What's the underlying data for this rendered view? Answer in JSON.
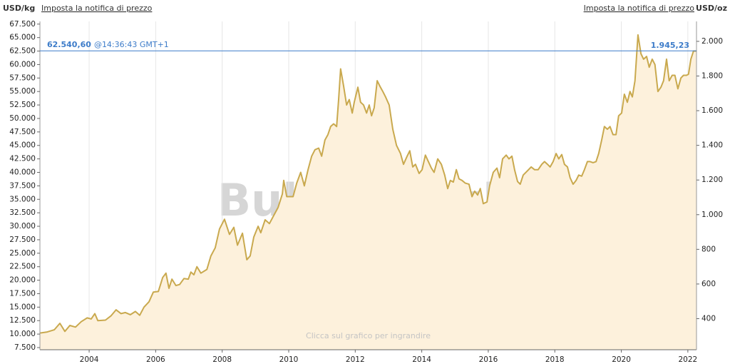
{
  "chart_data": {
    "type": "area",
    "unit_left": "USD/kg",
    "unit_right": "USD/oz",
    "alert_left": "Imposta la notifica di prezzo",
    "alert_right": "Imposta la notifica di prezzo",
    "watermark": "BullionVault",
    "hint": "Clicca sul grafico per ingrandire",
    "current_price": {
      "value": 62540.6,
      "label": "62.540,60"
    },
    "current_time": "@14:36:43 GMT+1",
    "current_price_oz": {
      "value": 1945.23,
      "label": "1.945,23"
    },
    "color": "#c9a94e",
    "fill_color": "#fdf1dc",
    "current_line_color": "#3d7cc9",
    "grid": true,
    "xlim": [
      2002.52,
      2022.26
    ],
    "xticks": [
      2004,
      2006,
      2008,
      2010,
      2012,
      2014,
      2016,
      2018,
      2020,
      2022
    ],
    "ylim": [
      7100,
      68000
    ],
    "yticks": [
      {
        "value": 7500,
        "label": "7.500"
      },
      {
        "value": 10000,
        "label": "10.000"
      },
      {
        "value": 12500,
        "label": "12.500"
      },
      {
        "value": 15000,
        "label": "15.000"
      },
      {
        "value": 17500,
        "label": "17.500"
      },
      {
        "value": 20000,
        "label": "20.000"
      },
      {
        "value": 22500,
        "label": "22.500"
      },
      {
        "value": 25000,
        "label": "25.000"
      },
      {
        "value": 27500,
        "label": "27.500"
      },
      {
        "value": 30000,
        "label": "30.000"
      },
      {
        "value": 32500,
        "label": "32.500"
      },
      {
        "value": 35000,
        "label": "35.000"
      },
      {
        "value": 37500,
        "label": "37.500"
      },
      {
        "value": 40000,
        "label": "40.000"
      },
      {
        "value": 42500,
        "label": "42.500"
      },
      {
        "value": 45000,
        "label": "45.000"
      },
      {
        "value": 47500,
        "label": "47.500"
      },
      {
        "value": 50000,
        "label": "50.000"
      },
      {
        "value": 52500,
        "label": "52.500"
      },
      {
        "value": 55000,
        "label": "55.000"
      },
      {
        "value": 57500,
        "label": "57.500"
      },
      {
        "value": 60000,
        "label": "60.000"
      },
      {
        "value": 62500,
        "label": "62.500"
      },
      {
        "value": 65000,
        "label": "65.000"
      },
      {
        "value": 67500,
        "label": "67.500"
      }
    ],
    "y2lim": [
      220.8,
      2115
    ],
    "y2ticks": [
      400,
      600,
      800,
      {
        "value": 1000,
        "label": "1.000"
      },
      {
        "value": 1200,
        "label": "1.200"
      },
      {
        "value": 1400,
        "label": "1.400"
      },
      {
        "value": 1600,
        "label": "1.600"
      },
      {
        "value": 1800,
        "label": "1.800"
      },
      {
        "value": 2000,
        "label": "2.000"
      }
    ],
    "x": [
      2002.52,
      2002.74,
      2002.95,
      2003.12,
      2003.27,
      2003.42,
      2003.59,
      2003.76,
      2003.94,
      2004.06,
      2004.17,
      2004.26,
      2004.49,
      2004.66,
      2004.81,
      2004.96,
      2005.09,
      2005.24,
      2005.39,
      2005.52,
      2005.65,
      2005.8,
      2005.93,
      2006.08,
      2006.21,
      2006.31,
      2006.4,
      2006.49,
      2006.61,
      2006.72,
      2006.85,
      2006.98,
      2007.06,
      2007.15,
      2007.24,
      2007.36,
      2007.54,
      2007.66,
      2007.79,
      2007.92,
      2008.07,
      2008.22,
      2008.35,
      2008.46,
      2008.61,
      2008.74,
      2008.84,
      2008.95,
      2009.08,
      2009.16,
      2009.29,
      2009.42,
      2009.55,
      2009.68,
      2009.81,
      2009.85,
      2009.94,
      2010.04,
      2010.13,
      2010.24,
      2010.36,
      2010.47,
      2010.58,
      2010.69,
      2010.79,
      2010.9,
      2010.99,
      2011.09,
      2011.18,
      2011.26,
      2011.35,
      2011.44,
      2011.5,
      2011.56,
      2011.65,
      2011.74,
      2011.82,
      2011.91,
      2011.97,
      2012.08,
      2012.16,
      2012.25,
      2012.34,
      2012.42,
      2012.49,
      2012.57,
      2012.66,
      2012.74,
      2012.83,
      2012.91,
      2013.02,
      2013.13,
      2013.24,
      2013.36,
      2013.45,
      2013.56,
      2013.64,
      2013.73,
      2013.81,
      2013.92,
      2014.01,
      2014.11,
      2014.2,
      2014.29,
      2014.37,
      2014.48,
      2014.59,
      2014.69,
      2014.78,
      2014.86,
      2014.95,
      2015.04,
      2015.12,
      2015.21,
      2015.31,
      2015.42,
      2015.51,
      2015.59,
      2015.68,
      2015.76,
      2015.85,
      2015.96,
      2016.04,
      2016.15,
      2016.26,
      2016.34,
      2016.43,
      2016.54,
      2016.62,
      2016.71,
      2016.79,
      2016.88,
      2016.96,
      2017.05,
      2017.18,
      2017.29,
      2017.39,
      2017.5,
      2017.61,
      2017.69,
      2017.78,
      2017.86,
      2017.95,
      2018.04,
      2018.12,
      2018.21,
      2018.29,
      2018.38,
      2018.46,
      2018.55,
      2018.64,
      2018.72,
      2018.81,
      2018.89,
      2018.98,
      2019.06,
      2019.15,
      2019.24,
      2019.32,
      2019.41,
      2019.49,
      2019.58,
      2019.66,
      2019.75,
      2019.84,
      2019.92,
      2020.01,
      2020.09,
      2020.18,
      2020.26,
      2020.33,
      2020.41,
      2020.5,
      2020.59,
      2020.67,
      2020.76,
      2020.84,
      2020.93,
      2021.01,
      2021.1,
      2021.19,
      2021.27,
      2021.36,
      2021.44,
      2021.53,
      2021.61,
      2021.7,
      2021.79,
      2021.87,
      2021.96,
      2022.02,
      2022.09,
      2022.17,
      2022.26
    ],
    "values": [
      10200,
      10400,
      10800,
      12000,
      10500,
      11600,
      11300,
      12300,
      13000,
      12800,
      13800,
      12500,
      12600,
      13400,
      14500,
      13800,
      14000,
      13600,
      14200,
      13500,
      15000,
      16000,
      17800,
      17900,
      20500,
      21300,
      18500,
      20200,
      19000,
      19200,
      20300,
      20200,
      21500,
      21000,
      22500,
      21300,
      22000,
      24500,
      26000,
      29500,
      31300,
      28500,
      29800,
      26500,
      28700,
      23800,
      24500,
      28000,
      30000,
      28800,
      31200,
      30500,
      32000,
      33500,
      36000,
      38500,
      35500,
      35500,
      35500,
      38000,
      40000,
      37500,
      40500,
      43000,
      44200,
      44500,
      43000,
      46000,
      47000,
      48500,
      49000,
      48500,
      53500,
      59200,
      56000,
      52500,
      53500,
      51000,
      53000,
      55800,
      53000,
      52500,
      51000,
      52500,
      50500,
      52000,
      57000,
      56000,
      55000,
      54000,
      52500,
      48000,
      45000,
      43500,
      41500,
      43000,
      44000,
      41000,
      41500,
      39800,
      40500,
      43200,
      42000,
      40800,
      40000,
      42500,
      41500,
      39500,
      37000,
      38500,
      38200,
      40500,
      38800,
      38500,
      38000,
      37800,
      35500,
      36500,
      35800,
      37000,
      34200,
      34500,
      37500,
      40000,
      40800,
      39000,
      42500,
      43200,
      42500,
      43000,
      40500,
      38300,
      37800,
      39500,
      40300,
      41000,
      40500,
      40500,
      41500,
      42000,
      41500,
      41000,
      42000,
      43500,
      42500,
      43300,
      41500,
      41000,
      39000,
      37800,
      38500,
      39500,
      39300,
      40500,
      42000,
      42000,
      41800,
      42000,
      43500,
      46000,
      48500,
      48000,
      48500,
      47000,
      47000,
      50500,
      51000,
      54500,
      53000,
      55000,
      54000,
      57000,
      65500,
      62000,
      61000,
      61500,
      59500,
      61000,
      60000,
      55000,
      55800,
      57000,
      61000,
      57000,
      58000,
      58000,
      55500,
      57500,
      58000,
      58000,
      58200,
      61000,
      62500,
      62500
    ]
  }
}
